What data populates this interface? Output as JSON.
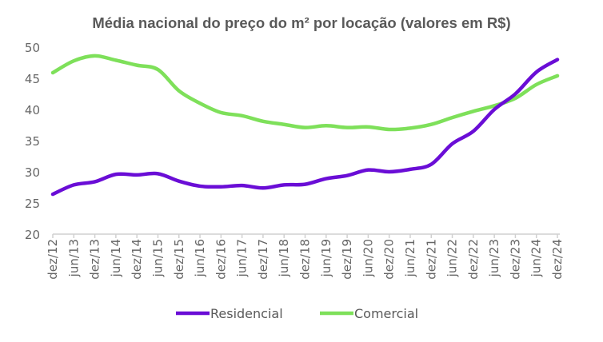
{
  "chart_data": {
    "type": "line",
    "title": "Média nacional do preço do m² por locação (valores em R$)",
    "xlabel": "",
    "ylabel": "",
    "ylim": [
      20,
      50
    ],
    "yticks": [
      20,
      25,
      30,
      35,
      40,
      45,
      50
    ],
    "grid": false,
    "legend": "bottom",
    "categories": [
      "dez/12",
      "jun/13",
      "dez/13",
      "jun/14",
      "dez/14",
      "jun/15",
      "dez/15",
      "jun/16",
      "dez/16",
      "jun/17",
      "dez/17",
      "jun/18",
      "dez/18",
      "jun/19",
      "dez/19",
      "jun/20",
      "dez/20",
      "jun/21",
      "dez/21",
      "jun/22",
      "dez/22",
      "jun/23",
      "dez/23",
      "jun/24",
      "dez/24"
    ],
    "series": [
      {
        "name": "Residencial",
        "color": "#6a0dd6",
        "values": [
          26.4,
          27.9,
          28.4,
          29.6,
          29.5,
          29.7,
          28.5,
          27.7,
          27.6,
          27.8,
          27.4,
          27.9,
          28.0,
          28.9,
          29.4,
          30.3,
          30.0,
          30.4,
          31.2,
          34.5,
          36.5,
          40.0,
          42.5,
          46.0,
          48.0
        ]
      },
      {
        "name": "Comercial",
        "color": "#7ee05a",
        "values": [
          45.9,
          47.8,
          48.6,
          47.9,
          47.1,
          46.4,
          43.0,
          41.0,
          39.5,
          39.0,
          38.1,
          37.6,
          37.1,
          37.4,
          37.1,
          37.2,
          36.8,
          37.0,
          37.6,
          38.7,
          39.7,
          40.6,
          41.8,
          44.0,
          45.4
        ]
      }
    ]
  }
}
